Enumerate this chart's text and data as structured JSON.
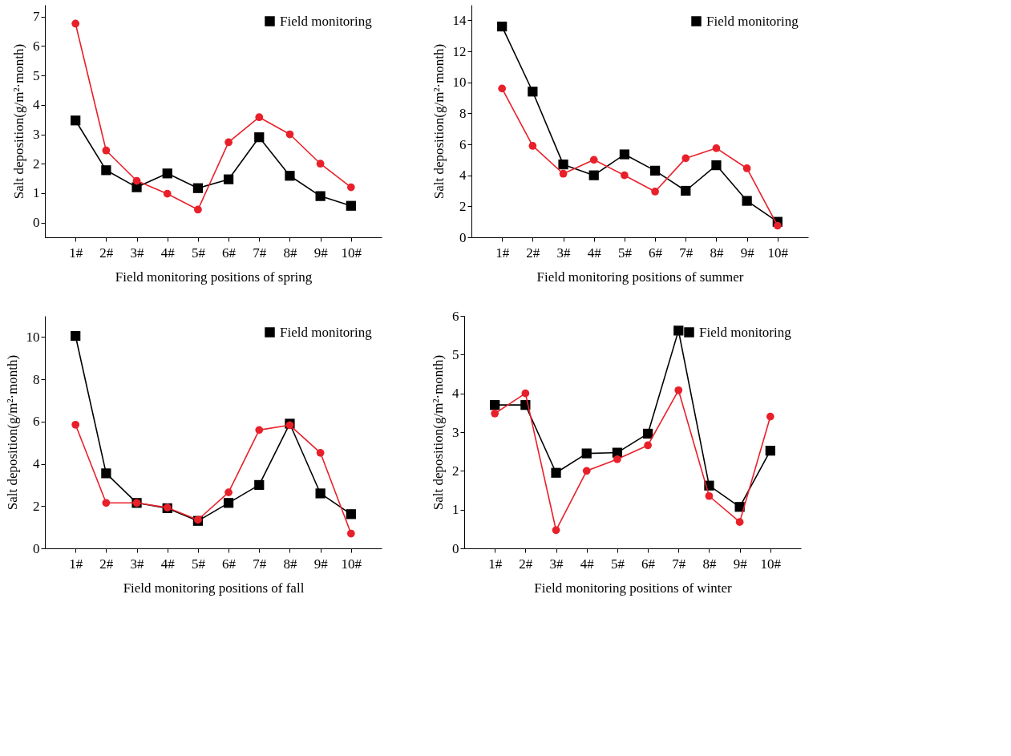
{
  "chart_data": [
    {
      "type": "line",
      "xlabel": "Field monitoring positions of spring",
      "ylabel": "Salt deposition(g/m²·month)",
      "categories": [
        "1#",
        "2#",
        "3#",
        "4#",
        "5#",
        "6#",
        "7#",
        "8#",
        "9#",
        "10#"
      ],
      "ylim": [
        -0.5,
        7.4
      ],
      "yticks": [
        0,
        1,
        2,
        3,
        4,
        5,
        6,
        7
      ],
      "grid": false,
      "legend": "top right",
      "line_style": "solid",
      "series": [
        {
          "name": "Field monitoring",
          "color": "#000000",
          "marker": "square",
          "values": [
            3.47,
            1.78,
            1.2,
            1.67,
            1.17,
            1.47,
            2.9,
            1.59,
            0.9,
            0.57
          ]
        },
        {
          "color": "#e8202a",
          "marker": "circle",
          "values": [
            6.76,
            2.45,
            1.42,
            0.98,
            0.44,
            2.73,
            3.58,
            3.0,
            2.0,
            1.2
          ]
        }
      ]
    },
    {
      "type": "line",
      "xlabel": "Field monitoring positions of summer",
      "ylabel": "Salt deposition(g/m²·month)",
      "categories": [
        "1#",
        "2#",
        "3#",
        "4#",
        "5#",
        "6#",
        "7#",
        "8#",
        "9#",
        "10#"
      ],
      "ylim": [
        0,
        15
      ],
      "yticks": [
        0,
        2,
        4,
        6,
        8,
        10,
        12,
        14
      ],
      "grid": false,
      "legend": "top right",
      "line_style": "solid",
      "series": [
        {
          "name": "Field monitoring",
          "color": "#000000",
          "marker": "square",
          "values": [
            13.6,
            9.4,
            4.7,
            4.0,
            5.35,
            4.3,
            3.0,
            4.65,
            2.35,
            1.0
          ]
        },
        {
          "color": "#e8202a",
          "marker": "circle",
          "values": [
            9.6,
            5.9,
            4.1,
            5.0,
            4.0,
            2.95,
            5.1,
            5.75,
            4.45,
            0.75
          ]
        }
      ]
    },
    {
      "type": "line",
      "xlabel": "Field monitoring positions of fall",
      "ylabel": "Salt deposition(g/m²·month)",
      "categories": [
        "1#",
        "2#",
        "3#",
        "4#",
        "5#",
        "6#",
        "7#",
        "8#",
        "9#",
        "10#"
      ],
      "ylim": [
        0,
        11
      ],
      "yticks": [
        0,
        2,
        4,
        6,
        8,
        10
      ],
      "grid": false,
      "legend": "top right",
      "line_style": "solid",
      "series": [
        {
          "name": "Field monitoring",
          "color": "#000000",
          "marker": "square",
          "values": [
            10.05,
            3.55,
            2.15,
            1.9,
            1.3,
            2.15,
            3.0,
            5.9,
            2.6,
            1.62
          ]
        },
        {
          "color": "#e8202a",
          "marker": "circle",
          "values": [
            5.85,
            2.15,
            2.15,
            1.93,
            1.35,
            2.65,
            5.6,
            5.83,
            4.52,
            0.7
          ]
        }
      ]
    },
    {
      "type": "line",
      "xlabel": "Field monitoring positions of winter",
      "ylabel": "Salt deposition(g/m²·month)",
      "categories": [
        "1#",
        "2#",
        "3#",
        "4#",
        "5#",
        "6#",
        "7#",
        "8#",
        "9#",
        "10#"
      ],
      "ylim": [
        0,
        6
      ],
      "yticks": [
        0,
        1,
        2,
        3,
        4,
        5,
        6
      ],
      "grid": false,
      "legend": "top right",
      "line_style": "solid",
      "series": [
        {
          "name": "Field monitoring",
          "color": "#000000",
          "marker": "square",
          "values": [
            3.7,
            3.7,
            1.95,
            2.45,
            2.47,
            2.96,
            5.62,
            1.62,
            1.07,
            2.52
          ]
        },
        {
          "color": "#e8202a",
          "marker": "circle",
          "values": [
            3.48,
            4.0,
            0.47,
            2.0,
            2.3,
            2.66,
            4.08,
            1.35,
            0.68,
            3.4
          ]
        }
      ]
    }
  ]
}
